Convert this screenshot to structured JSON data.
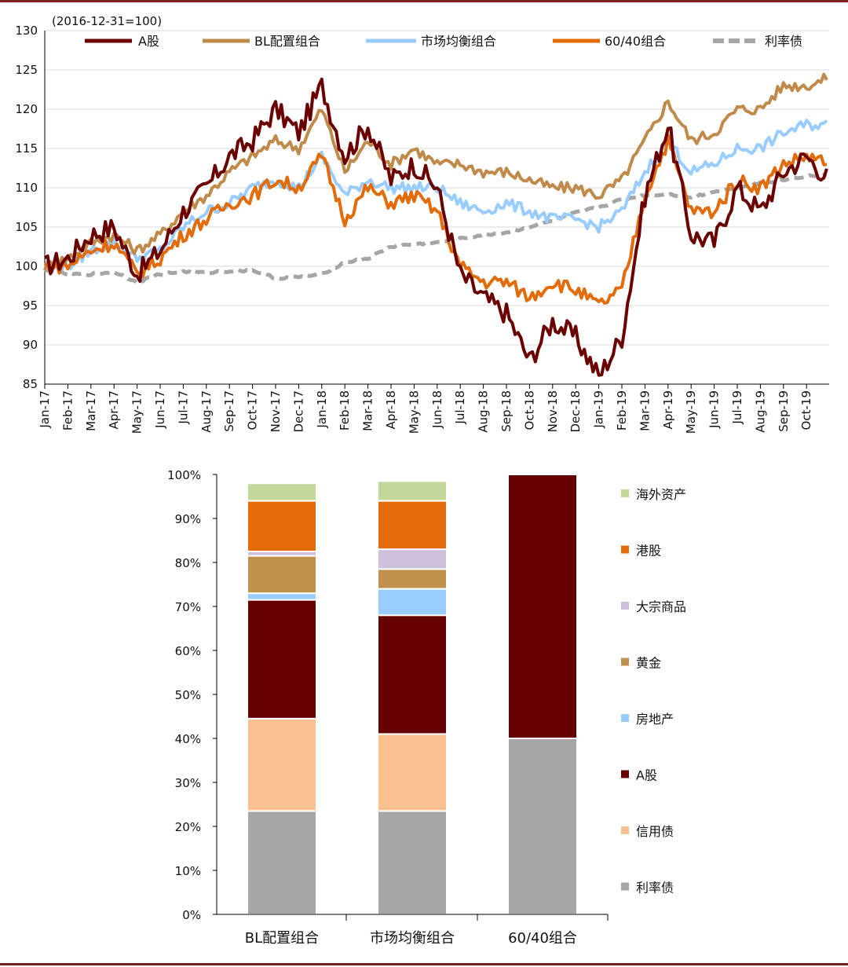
{
  "chart_data": [
    {
      "type": "line",
      "note": "(2016-12-31=100)",
      "ylim": [
        85,
        130
      ],
      "yticks": [
        85,
        90,
        95,
        100,
        105,
        110,
        115,
        120,
        125,
        130
      ],
      "x_labels": [
        "Jan-17",
        "Feb-17",
        "Mar-17",
        "Apr-17",
        "May-17",
        "Jun-17",
        "Jul-17",
        "Aug-17",
        "Sep-17",
        "Oct-17",
        "Nov-17",
        "Dec-17",
        "Jan-18",
        "Feb-18",
        "Mar-18",
        "Apr-18",
        "May-18",
        "Jun-18",
        "Jul-18",
        "Aug-18",
        "Sep-18",
        "Oct-18",
        "Nov-18",
        "Dec-18",
        "Jan-19",
        "Feb-19",
        "Mar-19",
        "Apr-19",
        "May-19",
        "Jun-19",
        "Jul-19",
        "Aug-19",
        "Sep-19",
        "Oct-19"
      ],
      "x_months": [
        0,
        1,
        2,
        3,
        4,
        5,
        6,
        7,
        8,
        9,
        10,
        11,
        12,
        13,
        14,
        15,
        16,
        17,
        18,
        19,
        20,
        21,
        22,
        23,
        24,
        25,
        26,
        27,
        28,
        29,
        30,
        31,
        32,
        33,
        34
      ],
      "series": [
        {
          "name": "A股",
          "color": "#6b0000",
          "dash": false,
          "values": [
            100,
            101,
            104,
            105,
            99,
            102,
            107,
            110,
            114,
            116,
            120,
            117,
            123,
            114,
            118,
            111,
            113,
            110,
            99,
            96,
            94,
            88,
            93,
            91,
            86,
            91,
            109,
            118,
            104,
            103,
            110,
            107,
            112,
            114,
            111
          ]
        },
        {
          "name": "BL配置组合",
          "color": "#c08a4a",
          "dash": false,
          "values": [
            100,
            101,
            103,
            104,
            102,
            104,
            107,
            109,
            112,
            114,
            116,
            115,
            120,
            112,
            116,
            113,
            115,
            113,
            113,
            112,
            112,
            111,
            110,
            110,
            109,
            111,
            116,
            121,
            116,
            117,
            120,
            120,
            123,
            123,
            124
          ]
        },
        {
          "name": "市场均衡组合",
          "color": "#99ccff",
          "dash": false,
          "values": [
            100,
            100,
            102,
            103,
            101,
            102,
            105,
            107,
            108,
            110,
            111,
            110,
            114,
            109,
            111,
            110,
            110,
            110,
            108,
            107,
            108,
            107,
            106,
            106,
            105,
            107,
            112,
            116,
            112,
            113,
            115,
            115,
            117,
            118,
            118
          ]
        },
        {
          "name": "60/40组合",
          "color": "#e36c0a",
          "dash": false,
          "values": [
            100,
            100,
            102,
            103,
            99,
            101,
            104,
            106,
            108,
            109,
            111,
            110,
            114,
            106,
            110,
            108,
            109,
            107,
            100,
            98,
            98,
            96,
            98,
            97,
            95,
            97,
            109,
            116,
            107,
            107,
            111,
            110,
            113,
            114,
            113
          ]
        },
        {
          "name": "利率债",
          "color": "#a6a6a6",
          "dash": true,
          "values": [
            99.5,
            99,
            99,
            99.3,
            98,
            99,
            99.3,
            99.2,
            99.4,
            99.5,
            98.5,
            98.6,
            99,
            100.5,
            101,
            102.5,
            102.8,
            103,
            103.5,
            104,
            104.3,
            105,
            105.8,
            106.8,
            107.5,
            108.5,
            109,
            109.2,
            108.8,
            109.5,
            110,
            110.6,
            111,
            111.5,
            111.5
          ]
        }
      ]
    },
    {
      "type": "bar",
      "stacked": true,
      "ylim": [
        0,
        100
      ],
      "yticks": [
        "0%",
        "10%",
        "20%",
        "30%",
        "40%",
        "50%",
        "60%",
        "70%",
        "80%",
        "90%",
        "100%"
      ],
      "categories": [
        "BL配置组合",
        "市场均衡组合",
        "60/40组合"
      ],
      "series": [
        {
          "name": "利率债",
          "color": "#a6a6a6",
          "values": [
            23.5,
            23.5,
            40
          ]
        },
        {
          "name": "信用债",
          "color": "#fac090",
          "values": [
            21,
            17.5,
            0
          ]
        },
        {
          "name": "A股",
          "color": "#660000",
          "values": [
            27,
            27,
            60
          ]
        },
        {
          "name": "房地产",
          "color": "#99ccff",
          "values": [
            1.5,
            6,
            0
          ]
        },
        {
          "name": "黄金",
          "color": "#c0904d",
          "values": [
            8.5,
            4.5,
            0
          ]
        },
        {
          "name": "大宗商品",
          "color": "#ccc0da",
          "values": [
            1,
            4.5,
            0
          ]
        },
        {
          "name": "港股",
          "color": "#e36c0a",
          "values": [
            11.5,
            11,
            0
          ]
        },
        {
          "name": "海外资产",
          "color": "#c4d79b",
          "values": [
            4,
            4.5,
            0
          ]
        }
      ],
      "legend_order": [
        "海外资产",
        "港股",
        "大宗商品",
        "黄金",
        "房地产",
        "A股",
        "信用债",
        "利率债"
      ]
    }
  ]
}
